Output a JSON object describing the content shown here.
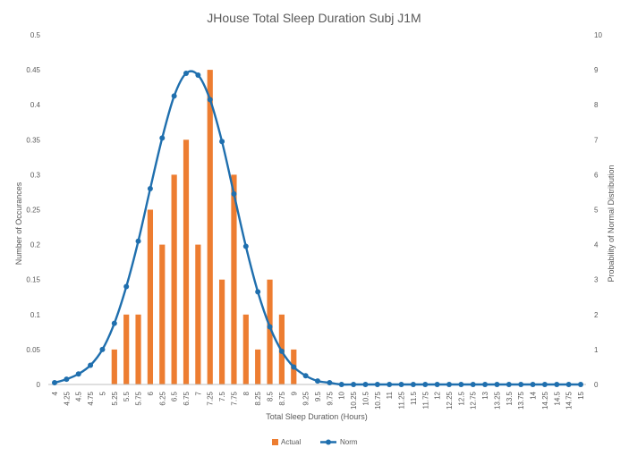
{
  "chart_data": {
    "type": "bar",
    "title": "JHouse Total Sleep Duration Subj J1M",
    "xlabel": "Total Sleep Duration (Hours)",
    "ylabel": "Number of Occurances",
    "y2label": "Probability of Normal Distribution",
    "ylim": [
      0,
      0.5
    ],
    "y2lim": [
      0,
      10
    ],
    "yticks": [
      "0",
      "0.05",
      "0.1",
      "0.15",
      "0.2",
      "0.25",
      "0.3",
      "0.35",
      "0.4",
      "0.45",
      "0.5"
    ],
    "y2ticks": [
      "0",
      "1",
      "2",
      "3",
      "4",
      "5",
      "6",
      "7",
      "8",
      "9",
      "10"
    ],
    "grid": false,
    "legend_position": "bottom",
    "categories": [
      "4",
      "4.25",
      "4.5",
      "4.75",
      "5",
      "5.25",
      "5.5",
      "5.75",
      "6",
      "6.25",
      "6.5",
      "6.75",
      "7",
      "7.25",
      "7.5",
      "7.75",
      "8",
      "8.25",
      "8.5",
      "8.75",
      "9",
      "9.25",
      "9.5",
      "9.75",
      "10",
      "10.25",
      "10.5",
      "10.75",
      "11",
      "11.25",
      "11.5",
      "11.75",
      "12",
      "12.25",
      "12.5",
      "12.75",
      "13",
      "13.25",
      "13.5",
      "13.75",
      "14",
      "14.25",
      "14.5",
      "14.75",
      "15"
    ],
    "series": [
      {
        "name": "Actual",
        "type": "bar",
        "axis": "primary",
        "color": "#ED7D31",
        "values": [
          0,
          0,
          0,
          0,
          0,
          0.05,
          0.1,
          0.1,
          0.25,
          0.2,
          0.3,
          0.35,
          0.2,
          0.45,
          0.15,
          0.3,
          0.1,
          0.05,
          0.15,
          0.1,
          0.05,
          0,
          0,
          0,
          0,
          0,
          0,
          0,
          0,
          0,
          0,
          0,
          0,
          0,
          0,
          0,
          0,
          0,
          0,
          0,
          0,
          0,
          0,
          0,
          0
        ]
      },
      {
        "name": "Norm",
        "type": "line",
        "axis": "secondary",
        "color": "#1F6FAE",
        "values": [
          0.05,
          0.15,
          0.3,
          0.55,
          1.0,
          1.75,
          2.8,
          4.1,
          5.6,
          7.05,
          8.25,
          8.9,
          8.85,
          8.15,
          6.95,
          5.45,
          3.95,
          2.65,
          1.65,
          0.95,
          0.5,
          0.25,
          0.1,
          0.05,
          0,
          0,
          0,
          0,
          0,
          0,
          0,
          0,
          0,
          0,
          0,
          0,
          0,
          0,
          0,
          0,
          0,
          0,
          0,
          0,
          0
        ]
      }
    ]
  }
}
